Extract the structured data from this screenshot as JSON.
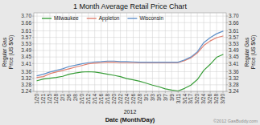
{
  "chart_data": {
    "type": "line",
    "title": "1 Month Average Retail Price Chart",
    "ylabel": "Regular Gas\nPrice (US $/G)",
    "y2label": "Regular Gas\nPrice (US $/G)",
    "xlabel": "Date (Month/Day)",
    "annotations": [
      "2012",
      "©2012 GasBuddy.com"
    ],
    "categories": [
      "1/20",
      "1/21",
      "1/25",
      "1/28",
      "2/1",
      "2/6",
      "2/8",
      "2/10",
      "2/12",
      "2/14",
      "2/16",
      "2/18",
      "2/20",
      "2/22",
      "2/24",
      "2/26",
      "2/28",
      "3/1",
      "3/3",
      "3/5",
      "3/7",
      "3/9",
      "3/11",
      "3/14",
      "3/17",
      "3/20",
      "3/24",
      "3/26",
      "3/28",
      "3/30"
    ],
    "series": [
      {
        "name": "Milwaukee",
        "color": "#3a9e3a",
        "values": [
          3.305,
          3.315,
          3.32,
          3.325,
          3.332,
          3.345,
          3.352,
          3.358,
          3.36,
          3.358,
          3.352,
          3.345,
          3.338,
          3.33,
          3.318,
          3.31,
          3.302,
          3.29,
          3.278,
          3.268,
          3.255,
          3.248,
          3.242,
          3.258,
          3.278,
          3.312,
          3.368,
          3.405,
          3.448,
          3.465
        ]
      },
      {
        "name": "Appleton",
        "color": "#e08070",
        "values": [
          3.325,
          3.33,
          3.348,
          3.358,
          3.368,
          3.378,
          3.388,
          3.398,
          3.408,
          3.412,
          3.415,
          3.418,
          3.418,
          3.415,
          3.415,
          3.415,
          3.415,
          3.415,
          3.415,
          3.415,
          3.415,
          3.415,
          3.415,
          3.428,
          3.445,
          3.475,
          3.52,
          3.548,
          3.568,
          3.578
        ]
      },
      {
        "name": "Wisconsin",
        "color": "#6090c8",
        "values": [
          3.335,
          3.345,
          3.358,
          3.368,
          3.378,
          3.392,
          3.4,
          3.408,
          3.415,
          3.42,
          3.422,
          3.425,
          3.425,
          3.422,
          3.422,
          3.42,
          3.418,
          3.418,
          3.418,
          3.418,
          3.418,
          3.418,
          3.418,
          3.432,
          3.45,
          3.482,
          3.538,
          3.568,
          3.592,
          3.608
        ]
      }
    ],
    "ylim": [
      3.24,
      3.72
    ],
    "yticks": [
      3.24,
      3.28,
      3.32,
      3.36,
      3.41,
      3.45,
      3.49,
      3.53,
      3.57,
      3.61,
      3.66,
      {
        "value": 3.7,
        "label": "3.70"
      }
    ],
    "y2lim": [
      3.24,
      3.72
    ],
    "y2ticks": [
      3.24,
      3.28,
      3.32,
      3.36,
      3.41,
      3.45,
      3.49,
      3.53,
      3.57,
      3.61,
      3.66,
      {
        "value": 3.7,
        "label": "3.70"
      }
    ],
    "grid": true,
    "legend": "top"
  }
}
